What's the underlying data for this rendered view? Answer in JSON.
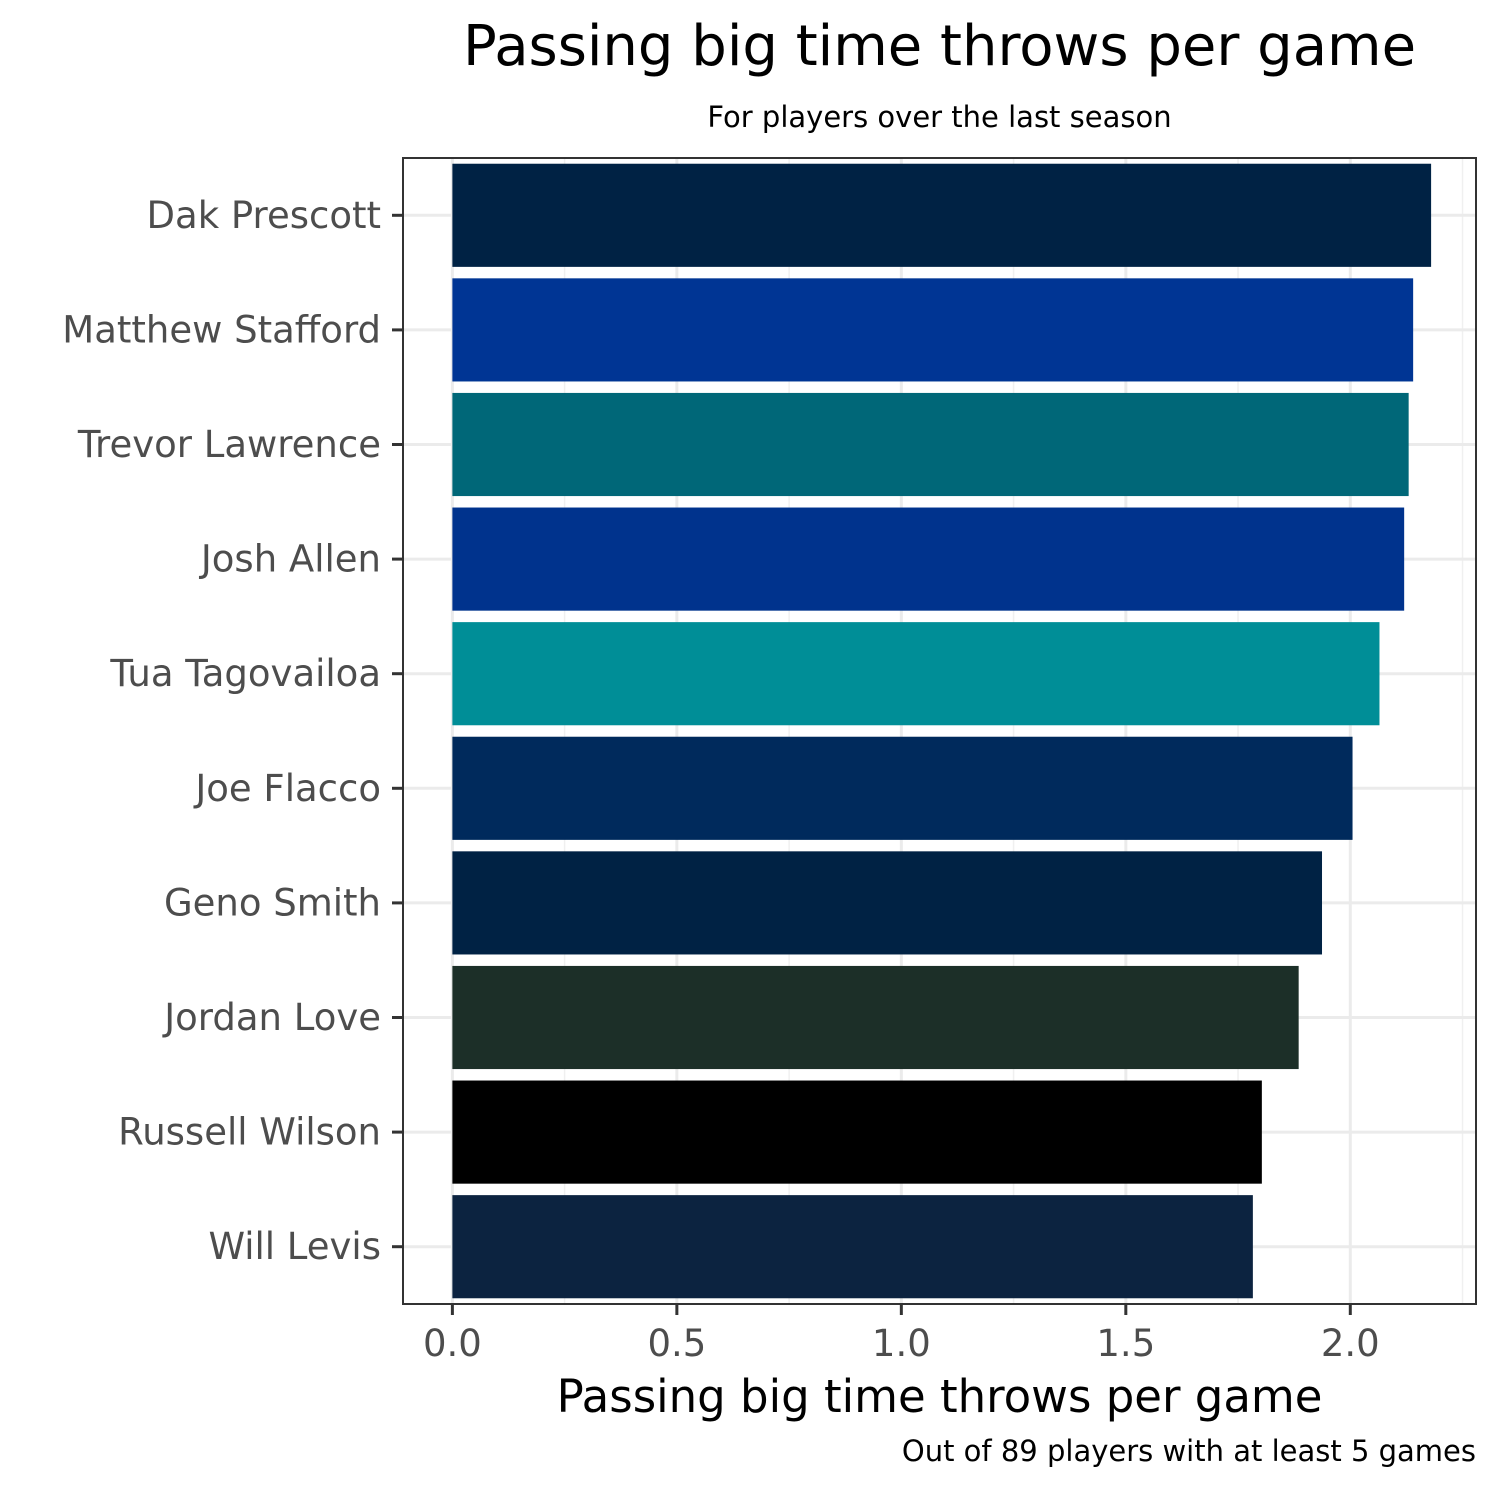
{
  "chart_data": {
    "type": "bar",
    "orientation": "horizontal",
    "title": "Passing big time throws per game",
    "subtitle": "For players over the last season",
    "xlabel": "Passing big time throws per game",
    "caption": "Out of 89 players with at least 5 games",
    "xlim": [
      -0.11,
      2.28
    ],
    "x_ticks": [
      0.0,
      0.5,
      1.0,
      1.5,
      2.0
    ],
    "x_tick_labels": [
      "0.0",
      "0.5",
      "1.0",
      "1.5",
      "2.0"
    ],
    "grid": true,
    "categories": [
      "Dak Prescott",
      "Matthew Stafford",
      "Trevor Lawrence",
      "Josh Allen",
      "Tua Tagovailoa",
      "Joe Flacco",
      "Geno Smith",
      "Jordan Love",
      "Russell Wilson",
      "Will Levis"
    ],
    "values": [
      2.18,
      2.14,
      2.13,
      2.12,
      2.065,
      2.005,
      1.937,
      1.885,
      1.803,
      1.783
    ],
    "colors": [
      "#002244",
      "#003594",
      "#006778",
      "#00338D",
      "#008E97",
      "#002A5C",
      "#002244",
      "#1C2F28",
      "#000000",
      "#0C2340"
    ]
  }
}
